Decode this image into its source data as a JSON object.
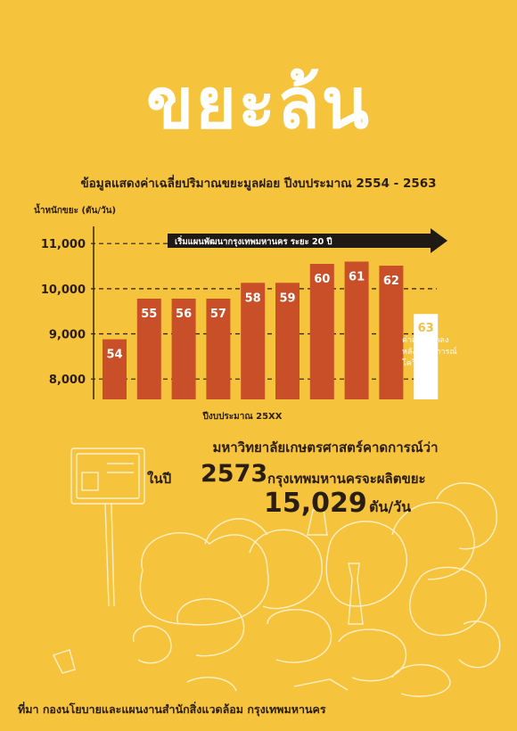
{
  "header": {
    "title": "ขยะล้น",
    "subtitle": "ข้อมูลแสดงค่าเฉลี่ยปริมาณขยะมูลฝอย ปีงบประมาณ 2554 - 2563"
  },
  "chart_data": {
    "type": "bar",
    "ylabel": "น้ำหนักขยะ (ตัน/วัน)",
    "xlabel": "ปีงบประมาณ 25XX",
    "categories": [
      "54",
      "55",
      "56",
      "57",
      "58",
      "59",
      "60",
      "61",
      "62",
      "63"
    ],
    "values": [
      8880,
      9780,
      9780,
      9780,
      10130,
      10130,
      10550,
      10600,
      10510,
      9440
    ],
    "yticks": [
      "8,000",
      "9,000",
      "10,000",
      "11,000"
    ],
    "ytick_values": [
      8000,
      9000,
      10000,
      11000
    ],
    "ylim": [
      7550,
      11300
    ],
    "grid": "dashed horizontal at ticks",
    "colors": {
      "bar": "#c84f27",
      "highlight": "#ffffff",
      "text": "#ffffff",
      "highlight_text": "#f2c04a"
    },
    "highlight_index": 9,
    "arrow_label": "เริ่มแผนพัฒนากรุงเทพมหานคร ระยะ 20 ปี",
    "annotation": [
      "ค่าเฉลี่ยลดลง",
      "หลังสถานการณ์",
      "โควิด 19"
    ]
  },
  "prediction": {
    "line1": "มหาวิทยาลัยเกษตรศาสตร์คาดการณ์ว่า",
    "year_prefix": "ในปี",
    "year": "2573",
    "city_line": "กรุงเทพมหานครจะผลิตขยะ",
    "amount": "15,029",
    "unit": "ตัน/วัน"
  },
  "source": "ที่มา กองนโยบายและแผนงานสำนักสิ่งแวดล้อม กรุงเทพมหานคร",
  "colors": {
    "background": "#f6c33d",
    "title": "#ffffff",
    "text": "#2a1e12"
  }
}
